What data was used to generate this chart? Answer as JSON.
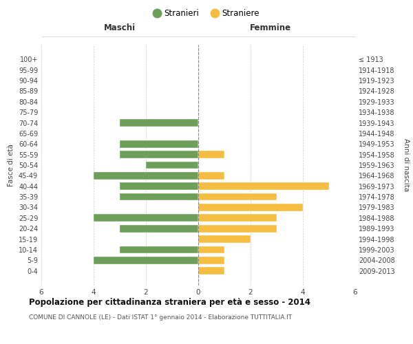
{
  "age_groups": [
    "0-4",
    "5-9",
    "10-14",
    "15-19",
    "20-24",
    "25-29",
    "30-34",
    "35-39",
    "40-44",
    "45-49",
    "50-54",
    "55-59",
    "60-64",
    "65-69",
    "70-74",
    "75-79",
    "80-84",
    "85-89",
    "90-94",
    "95-99",
    "100+"
  ],
  "birth_years": [
    "2009-2013",
    "2004-2008",
    "1999-2003",
    "1994-1998",
    "1989-1993",
    "1984-1988",
    "1979-1983",
    "1974-1978",
    "1969-1973",
    "1964-1968",
    "1959-1963",
    "1954-1958",
    "1949-1953",
    "1944-1948",
    "1939-1943",
    "1934-1938",
    "1929-1933",
    "1924-1928",
    "1919-1923",
    "1914-1918",
    "≤ 1913"
  ],
  "maschi": [
    0,
    4,
    3,
    0,
    3,
    4,
    0,
    3,
    3,
    4,
    2,
    3,
    3,
    0,
    3,
    0,
    0,
    0,
    0,
    0,
    0
  ],
  "femmine": [
    1,
    1,
    1,
    2,
    3,
    3,
    4,
    3,
    5,
    1,
    0,
    1,
    0,
    0,
    0,
    0,
    0,
    0,
    0,
    0,
    0
  ],
  "maschi_color": "#6d9e5a",
  "femmine_color": "#f5be42",
  "title": "Popolazione per cittadinanza straniera per età e sesso - 2014",
  "subtitle": "COMUNE DI CANNOLE (LE) - Dati ISTAT 1° gennaio 2014 - Elaborazione TUTTITALIA.IT",
  "xlabel_left": "Maschi",
  "xlabel_right": "Femmine",
  "ylabel_left": "Fasce di età",
  "ylabel_right": "Anni di nascita",
  "legend_maschi": "Stranieri",
  "legend_femmine": "Straniere",
  "xlim": 6,
  "bg_color": "#ffffff",
  "grid_color": "#cccccc"
}
